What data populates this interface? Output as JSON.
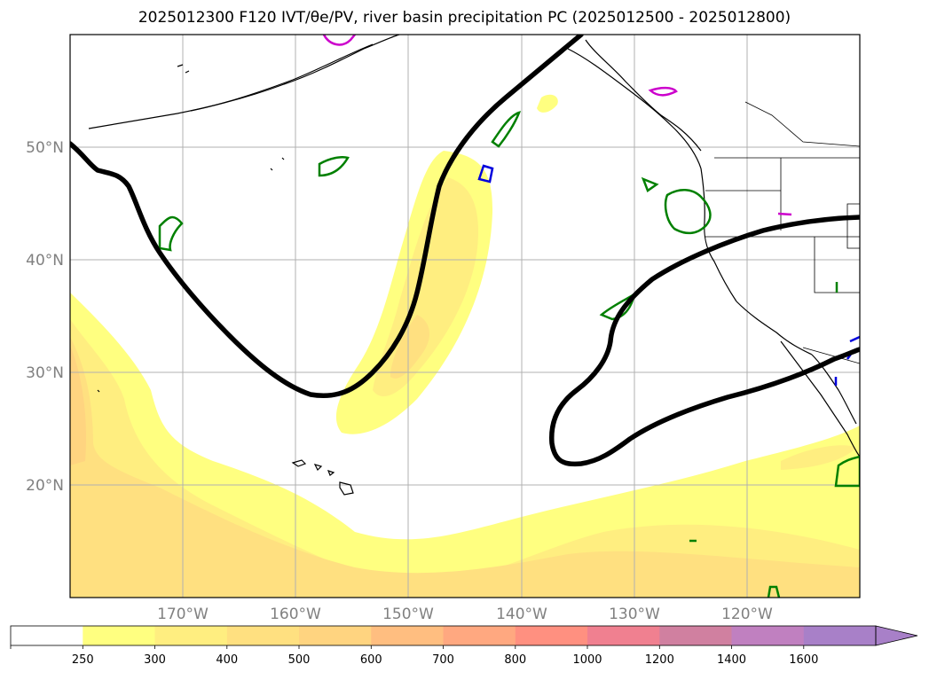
{
  "title": "2025012300 F120 IVT/θe/PV, river basin precipitation PC (2025012500 - 2025012800)",
  "map": {
    "lon_range": [
      -180,
      -110
    ],
    "lat_range": [
      10,
      60
    ],
    "lat_ticks": [
      {
        "value": 20,
        "label": "20°N"
      },
      {
        "value": 30,
        "label": "30°N"
      },
      {
        "value": 40,
        "label": "40°N"
      },
      {
        "value": 50,
        "label": "50°N"
      }
    ],
    "lon_ticks": [
      {
        "value": -170,
        "label": "170°W"
      },
      {
        "value": -160,
        "label": "160°W"
      },
      {
        "value": -150,
        "label": "150°W"
      },
      {
        "value": -140,
        "label": "140°W"
      },
      {
        "value": -130,
        "label": "130°W"
      },
      {
        "value": -120,
        "label": "120°W"
      }
    ],
    "grid": true
  },
  "colorbar": {
    "levels": [
      "250",
      "300",
      "400",
      "500",
      "600",
      "700",
      "800",
      "1000",
      "1200",
      "1400",
      "1600"
    ],
    "colors": [
      "#ffffff",
      "#ffff80",
      "#ffee80",
      "#ffe080",
      "#ffd480",
      "#ffbe80",
      "#ffa880",
      "#ff9080",
      "#f08090",
      "#d080a0",
      "#c080c0",
      "#a880c8"
    ],
    "extend": "max"
  },
  "colors": {
    "contour_thick": "#000000",
    "pv_green": "#008000",
    "pv_magenta": "#cc00cc",
    "pv_blue": "#0000dd",
    "coast": "#000000"
  }
}
